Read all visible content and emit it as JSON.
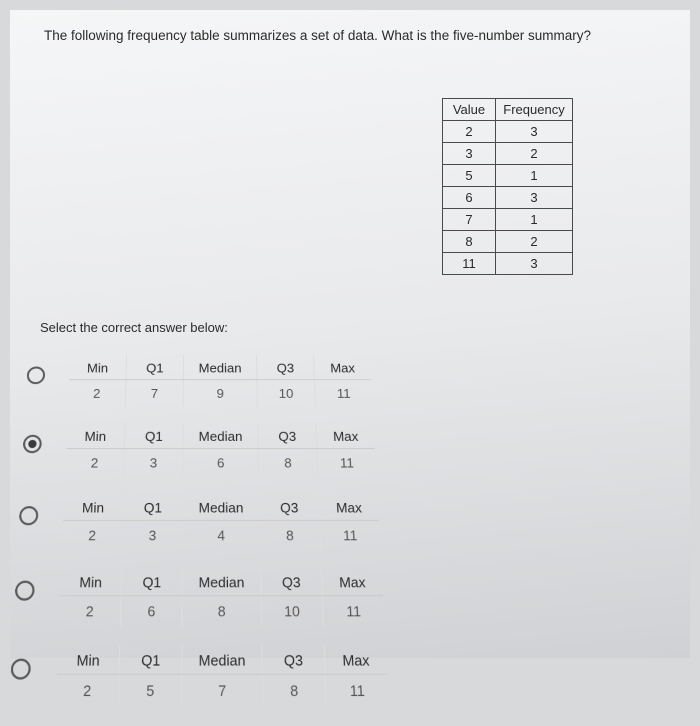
{
  "question_text": "The following frequency table summarizes a set of data. What is the five-number summary?",
  "freq_table": {
    "headers": [
      "Value",
      "Frequency"
    ],
    "rows": [
      [
        "2",
        "3"
      ],
      [
        "3",
        "2"
      ],
      [
        "5",
        "1"
      ],
      [
        "6",
        "3"
      ],
      [
        "7",
        "1"
      ],
      [
        "8",
        "2"
      ],
      [
        "11",
        "3"
      ]
    ]
  },
  "select_text": "Select the correct answer below:",
  "summary_headers": [
    "Min",
    "Q1",
    "Median",
    "Q3",
    "Max"
  ],
  "options": [
    {
      "selected": false,
      "values": [
        "2",
        "7",
        "9",
        "10",
        "11"
      ]
    },
    {
      "selected": true,
      "values": [
        "2",
        "3",
        "6",
        "8",
        "11"
      ]
    },
    {
      "selected": false,
      "values": [
        "2",
        "3",
        "4",
        "8",
        "11"
      ]
    },
    {
      "selected": false,
      "values": [
        "2",
        "6",
        "8",
        "10",
        "11"
      ]
    },
    {
      "selected": false,
      "values": [
        "2",
        "5",
        "7",
        "8",
        "11"
      ]
    }
  ]
}
